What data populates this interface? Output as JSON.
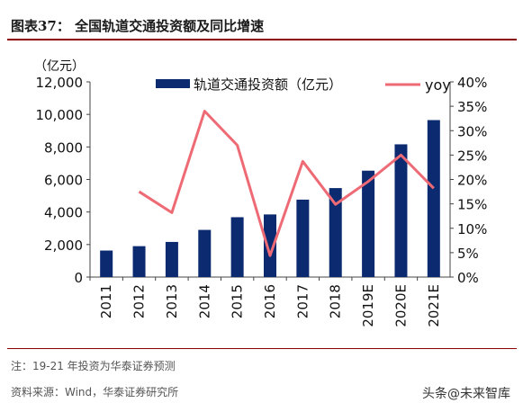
{
  "header": {
    "title": "图表37：   全国轨道交通投资额及同比增速"
  },
  "footer": {
    "note": "注：19-21 年投资为华泰证券预测",
    "source": "资料来源：Wind，华泰证券研究所",
    "watermark": "头条@未来智库"
  },
  "colors": {
    "bar": "#0b2a70",
    "line": "#ee6a75",
    "rule": "#8b0000"
  },
  "chart_data": {
    "type": "bar+line",
    "categories": [
      "2011",
      "2012",
      "2013",
      "2014",
      "2015",
      "2016",
      "2017",
      "2018",
      "2019E",
      "2020E",
      "2021E"
    ],
    "series": [
      {
        "name": "轨道交通投资额（亿元）",
        "type": "bar",
        "axis": "left",
        "values": [
          1630,
          1900,
          2160,
          2900,
          3680,
          3850,
          4760,
          5470,
          6540,
          8160,
          9650
        ]
      },
      {
        "name": "yoy",
        "type": "line",
        "axis": "right",
        "values": [
          null,
          17.5,
          13.2,
          34,
          27,
          4.4,
          23.7,
          14.9,
          19.6,
          25,
          18.2
        ]
      }
    ],
    "yunit": "（亿元）",
    "ylim": [
      0,
      12000
    ],
    "yticks": [
      "0",
      "2,000",
      "4,000",
      "6,000",
      "8,000",
      "10,000",
      "12,000"
    ],
    "y2lim": [
      0,
      40
    ],
    "y2ticks": [
      "0%",
      "5%",
      "10%",
      "15%",
      "20%",
      "25%",
      "30%",
      "35%",
      "40%"
    ],
    "legend_position": "top"
  }
}
